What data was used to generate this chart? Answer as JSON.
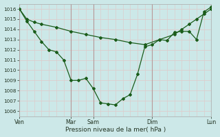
{
  "xlabel": "Pression niveau de la mer( hPa )",
  "ylim": [
    1005.5,
    1016.5
  ],
  "yticks": [
    1006,
    1007,
    1008,
    1009,
    1010,
    1011,
    1012,
    1013,
    1014,
    1015,
    1016
  ],
  "background_color": "#cce8e8",
  "grid_color_h": "#ddcccc",
  "grid_color_v": "#ddcccc",
  "line_color": "#1a5c1a",
  "tick_label_color": "#223322",
  "xlabel_color": "#223322",
  "xtick_label_color": "#223322",
  "line1_x": [
    0.0,
    0.5,
    1.0,
    1.5,
    2.5,
    3.5,
    4.5,
    5.5,
    6.5,
    7.5,
    8.5,
    9.5,
    10.5,
    11.0,
    11.5,
    12.0,
    12.5,
    13.0
  ],
  "line1_y": [
    1016.0,
    1015.0,
    1014.7,
    1014.5,
    1014.2,
    1013.8,
    1013.5,
    1013.2,
    1013.0,
    1012.7,
    1012.5,
    1013.0,
    1013.5,
    1014.0,
    1014.5,
    1015.0,
    1015.5,
    1016.0
  ],
  "line2_x": [
    0.0,
    0.5,
    1.0,
    1.5,
    2.0,
    2.5,
    3.0,
    3.5,
    4.0,
    4.5,
    5.0,
    5.5,
    6.0,
    6.5,
    7.0,
    7.5,
    8.0,
    8.5,
    9.0,
    9.5,
    10.0,
    10.5,
    11.0,
    11.5,
    12.0,
    12.5,
    13.0
  ],
  "line2_y": [
    1016.0,
    1014.8,
    1013.8,
    1012.8,
    1012.0,
    1011.8,
    1011.0,
    1009.0,
    1009.0,
    1009.2,
    1008.2,
    1006.8,
    1006.7,
    1006.6,
    1007.2,
    1007.6,
    1009.6,
    1012.3,
    1012.5,
    1013.0,
    1012.9,
    1013.7,
    1013.8,
    1013.8,
    1013.0,
    1015.7,
    1016.2
  ],
  "xtick_positions": [
    0.0,
    3.5,
    5.0,
    9.0,
    13.0
  ],
  "xtick_labels": [
    "Ven",
    "Mar",
    "Sam",
    "Dim",
    "Lun"
  ],
  "vline_x": [
    0.0,
    3.5,
    5.0,
    9.0,
    13.0
  ],
  "minor_vline_step": 0.5,
  "xlim": [
    0.0,
    13.0
  ],
  "figsize": [
    3.2,
    2.0
  ],
  "dpi": 100
}
